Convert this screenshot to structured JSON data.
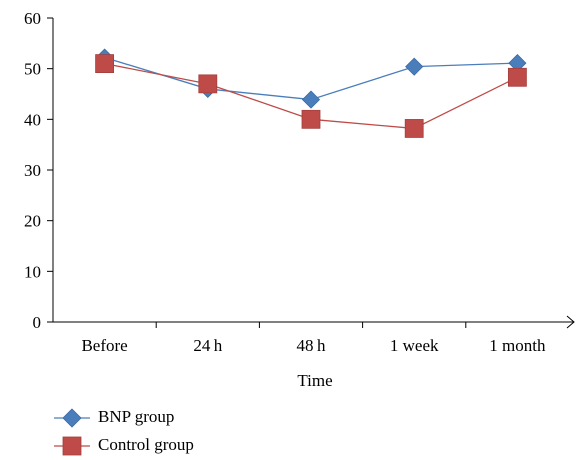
{
  "chart_data": {
    "type": "line",
    "categories": [
      "Before",
      "24 h",
      "48 h",
      "1 week",
      "1 month"
    ],
    "series": [
      {
        "name": "BNP group",
        "values": [
          52.2,
          46.0,
          43.9,
          50.4,
          51.1
        ],
        "color": "#4a7ebb",
        "marker": "diamond"
      },
      {
        "name": "Control group",
        "values": [
          51.0,
          47.0,
          40.0,
          38.2,
          48.3
        ],
        "color": "#be4b48",
        "marker": "square"
      }
    ],
    "xlabel": "Time",
    "ylabel": "",
    "ylim": [
      0,
      60
    ],
    "yticks": [
      0,
      10,
      20,
      30,
      40,
      50,
      60
    ],
    "grid": false,
    "legend_position": "bottom-left"
  }
}
